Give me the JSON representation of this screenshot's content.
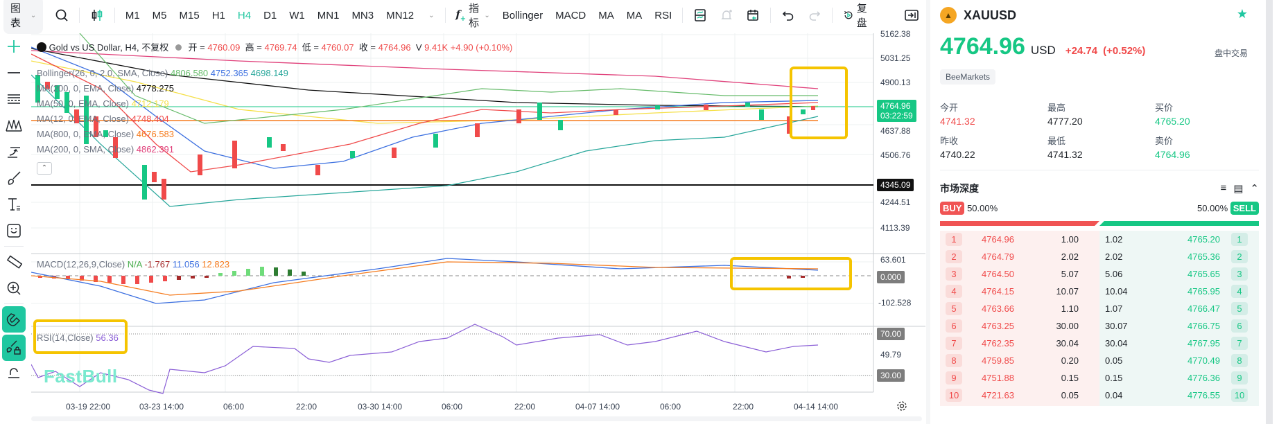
{
  "toolbar": {
    "chart_menu": "图表",
    "timeframes": [
      "M1",
      "M5",
      "M15",
      "H1",
      "H4",
      "D1",
      "W1",
      "MN1",
      "MN3",
      "MN12"
    ],
    "active_timeframe": "H4",
    "indicators_label": "指标",
    "indicator_shortcuts": [
      "Bollinger",
      "MACD",
      "MA",
      "MA",
      "RSI"
    ],
    "replay_label": "复盘"
  },
  "chart": {
    "title": "Gold vs US Dollar, H4, 不复权",
    "ohlc": {
      "open_label": "开 =",
      "open": "4760.09",
      "high_label": "高 =",
      "high": "4769.74",
      "low_label": "低 =",
      "low": "4760.07",
      "close_label": "收 =",
      "close": "4764.96",
      "volume_label": "V",
      "volume": "9.41K",
      "change": "+4.90 (+0.10%)"
    },
    "indicators": [
      {
        "label": "Bollinger(26, 0, 2.0, SMA, Close)",
        "values": [
          "4806.580",
          "4752.365",
          "4698.149"
        ],
        "colors": [
          "#66bb6a",
          "#3b6fe0",
          "#26a69a"
        ]
      },
      {
        "label": "MA(200, 0, EMA, Close)",
        "values": [
          "4778.275"
        ],
        "colors": [
          "#111111"
        ]
      },
      {
        "label": "MA(50, 0, EMA, Close)",
        "values": [
          "4712.179"
        ],
        "colors": [
          "#f5e04a"
        ]
      },
      {
        "label": "MA(12, 0, EMA, Close)",
        "values": [
          "4748.404"
        ],
        "colors": [
          "#f04a4a"
        ]
      },
      {
        "label": "MA(800, 0, EMA, Close)",
        "values": [
          "4676.583"
        ],
        "colors": [
          "#f57c1f"
        ]
      },
      {
        "label": "MA(200, 0, SMA, Close)",
        "values": [
          "4862.391"
        ],
        "colors": [
          "#e0407a"
        ]
      }
    ],
    "price_axis": [
      "5162.38",
      "5031.25",
      "4900.13",
      "4637.88",
      "4506.76",
      "4244.51",
      "4113.39"
    ],
    "current_price_tag": "4764.96",
    "countdown_tag": "03:22:59",
    "line_tag": "4345.09",
    "macd": {
      "label": "MACD(12,26,9,Close)",
      "values": [
        "N/A",
        "-1.767",
        "11.056",
        "12.823"
      ],
      "axis": [
        "63.601",
        "0.000",
        "-102.528"
      ]
    },
    "rsi": {
      "label": "RSI(14,Close)",
      "value": "56.36",
      "axis": [
        "70.00",
        "49.79",
        "30.00"
      ]
    },
    "time_axis": [
      "03-19 22:00",
      "03-23 14:00",
      "06:00",
      "22:00",
      "03-30 14:00",
      "06:00",
      "22:00",
      "04-07 14:00",
      "06:00",
      "22:00",
      "04-14 14:00"
    ],
    "watermark": "FastBull"
  },
  "quote": {
    "symbol": "XAUUSD",
    "price": "4764.96",
    "currency": "USD",
    "change": "+24.74",
    "change_pct": "(+0.52%)",
    "session": "盘中交易",
    "broker": "BeeMarkets",
    "stats": [
      {
        "label": "今开",
        "value": "4741.32",
        "color": "#f04a4a"
      },
      {
        "label": "最高",
        "value": "4777.20",
        "color": "#1f2329"
      },
      {
        "label": "买价",
        "value": "4765.20",
        "color": "#16c784"
      },
      {
        "label": "昨收",
        "value": "4740.22",
        "color": "#1f2329"
      },
      {
        "label": "最低",
        "value": "4741.32",
        "color": "#1f2329"
      },
      {
        "label": "卖价",
        "value": "4764.96",
        "color": "#16c784"
      }
    ]
  },
  "depth": {
    "title": "市场深度",
    "buy_label": "BUY",
    "buy_pct": "50.00%",
    "sell_label": "SELL",
    "sell_pct": "50.00%",
    "bids": [
      {
        "n": "1",
        "price": "4764.96",
        "qty": "1.00"
      },
      {
        "n": "2",
        "price": "4764.79",
        "qty": "2.02"
      },
      {
        "n": "3",
        "price": "4764.50",
        "qty": "5.07"
      },
      {
        "n": "4",
        "price": "4764.15",
        "qty": "10.07"
      },
      {
        "n": "5",
        "price": "4763.66",
        "qty": "1.10"
      },
      {
        "n": "6",
        "price": "4763.25",
        "qty": "30.00"
      },
      {
        "n": "7",
        "price": "4762.35",
        "qty": "30.04"
      },
      {
        "n": "8",
        "price": "4759.85",
        "qty": "0.20"
      },
      {
        "n": "9",
        "price": "4751.88",
        "qty": "0.15"
      },
      {
        "n": "10",
        "price": "4721.63",
        "qty": "0.05"
      }
    ],
    "asks": [
      {
        "n": "1",
        "price": "4765.20",
        "qty": "1.02"
      },
      {
        "n": "2",
        "price": "4765.36",
        "qty": "2.02"
      },
      {
        "n": "3",
        "price": "4765.65",
        "qty": "5.06"
      },
      {
        "n": "4",
        "price": "4765.95",
        "qty": "10.04"
      },
      {
        "n": "5",
        "price": "4766.47",
        "qty": "1.07"
      },
      {
        "n": "6",
        "price": "4766.75",
        "qty": "30.07"
      },
      {
        "n": "7",
        "price": "4767.95",
        "qty": "30.04"
      },
      {
        "n": "8",
        "price": "4770.49",
        "qty": "0.05"
      },
      {
        "n": "9",
        "price": "4776.36",
        "qty": "0.15"
      },
      {
        "n": "10",
        "price": "4776.55",
        "qty": "0.04"
      }
    ]
  },
  "colors": {
    "accent": "#1fc7a0",
    "up": "#16c784",
    "down": "#f04a4a",
    "highlight": "#f5c400"
  }
}
